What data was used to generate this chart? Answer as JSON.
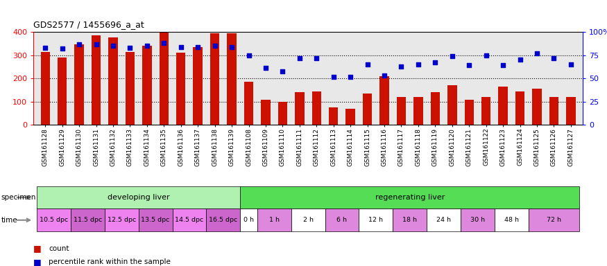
{
  "title": "GDS2577 / 1455696_a_at",
  "samples": [
    "GSM161128",
    "GSM161129",
    "GSM161130",
    "GSM161131",
    "GSM161132",
    "GSM161133",
    "GSM161134",
    "GSM161135",
    "GSM161136",
    "GSM161137",
    "GSM161138",
    "GSM161139",
    "GSM161108",
    "GSM161109",
    "GSM161110",
    "GSM161111",
    "GSM161112",
    "GSM161113",
    "GSM161114",
    "GSM161115",
    "GSM161116",
    "GSM161117",
    "GSM161118",
    "GSM161119",
    "GSM161120",
    "GSM161121",
    "GSM161122",
    "GSM161123",
    "GSM161124",
    "GSM161125",
    "GSM161126",
    "GSM161127"
  ],
  "bar_values": [
    315,
    290,
    347,
    385,
    375,
    315,
    340,
    400,
    310,
    335,
    395,
    395,
    185,
    110,
    100,
    140,
    145,
    75,
    70,
    135,
    210,
    120,
    120,
    140,
    170,
    110,
    120,
    165,
    145,
    155,
    120,
    120
  ],
  "dot_values": [
    83,
    82,
    87,
    87,
    85,
    83,
    85,
    88,
    84,
    84,
    85,
    84,
    75,
    61,
    58,
    72,
    72,
    52,
    52,
    65,
    53,
    63,
    65,
    67,
    74,
    64,
    75,
    64,
    70,
    77,
    72,
    65
  ],
  "specimen_groups": [
    {
      "label": "developing liver",
      "start": 0,
      "end": 12,
      "color": "#b0f0b0"
    },
    {
      "label": "regenerating liver",
      "start": 12,
      "end": 32,
      "color": "#55dd55"
    }
  ],
  "time_groups": [
    {
      "label": "10.5 dpc",
      "start": 0,
      "end": 2,
      "color": "#ee82ee"
    },
    {
      "label": "11.5 dpc",
      "start": 2,
      "end": 4,
      "color": "#cc66cc"
    },
    {
      "label": "12.5 dpc",
      "start": 4,
      "end": 6,
      "color": "#ee82ee"
    },
    {
      "label": "13.5 dpc",
      "start": 6,
      "end": 8,
      "color": "#cc66cc"
    },
    {
      "label": "14.5 dpc",
      "start": 8,
      "end": 10,
      "color": "#ee82ee"
    },
    {
      "label": "16.5 dpc",
      "start": 10,
      "end": 12,
      "color": "#cc66cc"
    },
    {
      "label": "0 h",
      "start": 12,
      "end": 13,
      "color": "#ffffff"
    },
    {
      "label": "1 h",
      "start": 13,
      "end": 15,
      "color": "#dd88dd"
    },
    {
      "label": "2 h",
      "start": 15,
      "end": 17,
      "color": "#ffffff"
    },
    {
      "label": "6 h",
      "start": 17,
      "end": 19,
      "color": "#dd88dd"
    },
    {
      "label": "12 h",
      "start": 19,
      "end": 21,
      "color": "#ffffff"
    },
    {
      "label": "18 h",
      "start": 21,
      "end": 23,
      "color": "#dd88dd"
    },
    {
      "label": "24 h",
      "start": 23,
      "end": 25,
      "color": "#ffffff"
    },
    {
      "label": "30 h",
      "start": 25,
      "end": 27,
      "color": "#dd88dd"
    },
    {
      "label": "48 h",
      "start": 27,
      "end": 29,
      "color": "#ffffff"
    },
    {
      "label": "72 h",
      "start": 29,
      "end": 32,
      "color": "#dd88dd"
    }
  ],
  "bar_color": "#cc1100",
  "dot_color": "#0000cc",
  "ylim_left": [
    0,
    400
  ],
  "ylim_right": [
    0,
    100
  ],
  "yticks_left": [
    0,
    100,
    200,
    300,
    400
  ],
  "yticks_right": [
    0,
    25,
    50,
    75,
    100
  ],
  "ytick_labels_right": [
    "0",
    "25",
    "50",
    "75",
    "100%"
  ],
  "xtick_bg": "#d8d8d8",
  "title_fontsize": 9,
  "tick_fontsize": 6.5,
  "label_fontsize": 7.5,
  "specimen_label": "specimen",
  "time_label": "time"
}
